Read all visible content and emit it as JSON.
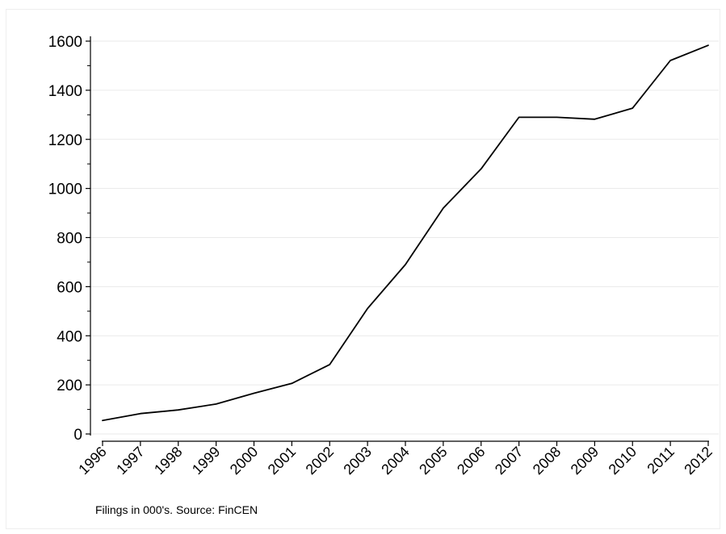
{
  "colors": {
    "background": "#ffffff",
    "line": "#000000",
    "grid": "#eaeaea",
    "axis": "#000000"
  },
  "note": "Filings in 000's. Source: FinCEN",
  "chart_data": {
    "type": "line",
    "title": "",
    "xlabel": "",
    "ylabel": "",
    "x": [
      "1996",
      "1997",
      "1998",
      "1999",
      "2000",
      "2001",
      "2002",
      "2003",
      "2004",
      "2005",
      "2006",
      "2007",
      "2008",
      "2009",
      "2010",
      "2011",
      "2012"
    ],
    "series": [
      {
        "values": [
          55,
          83,
          98,
          122,
          166,
          206,
          283,
          511,
          690,
          920,
          1080,
          1290,
          1290,
          1282,
          1327,
          1521,
          1583
        ]
      }
    ],
    "ylim": [
      0,
      1600
    ],
    "yticks": [
      0,
      200,
      400,
      600,
      800,
      1000,
      1200,
      1400,
      1600
    ],
    "yticks_minor": [
      100,
      300,
      500,
      700,
      900,
      1100,
      1300,
      1500
    ],
    "grid": true,
    "legend": "none",
    "x_tick_rotation": "45 degrees"
  }
}
